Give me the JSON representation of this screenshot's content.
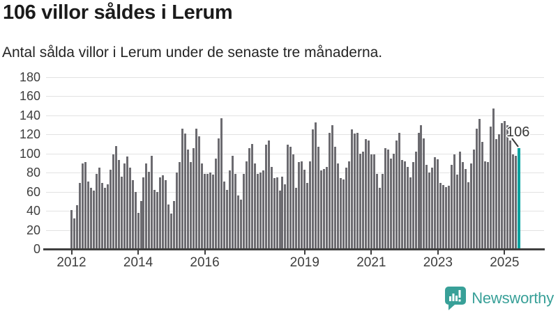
{
  "header": {
    "title": "106 villor såldes i Lerum",
    "subtitle": "Antal sålda villor i Lerum under de senaste tre månaderna."
  },
  "annotation": {
    "label": "106"
  },
  "footer": {
    "brand": "Newsworthy"
  },
  "colors": {
    "bar": "#6c6b70",
    "accent": "#00a3a0",
    "brand_teal": "#38a098",
    "grid": "#e2e2e2",
    "axis": "#3f3f3f"
  },
  "chart_data": {
    "type": "bar",
    "title": "106 villor såldes i Lerum",
    "subtitle": "Antal sålda villor i Lerum under de senaste tre månaderna.",
    "ylabel": "",
    "xlabel": "",
    "ylim": [
      0,
      180
    ],
    "yticks": [
      0,
      20,
      40,
      60,
      80,
      100,
      120,
      140,
      160,
      180
    ],
    "xticks_years": [
      2012,
      2014,
      2016,
      2019,
      2021,
      2023,
      2025
    ],
    "grid": "horizontal",
    "legend_position": "none",
    "x_start": {
      "year": 2012,
      "month": 1
    },
    "frequency": "monthly",
    "highlight_last": true,
    "highlight_value": 106,
    "values": [
      41,
      32,
      46,
      69,
      90,
      91,
      71,
      64,
      61,
      79,
      85,
      69,
      64,
      68,
      83,
      99,
      108,
      93,
      76,
      90,
      97,
      85,
      72,
      60,
      38,
      50,
      75,
      90,
      81,
      98,
      62,
      60,
      75,
      77,
      72,
      47,
      37,
      50,
      80,
      91,
      126,
      121,
      104,
      91,
      106,
      126,
      118,
      90,
      79,
      79,
      80,
      78,
      95,
      116,
      137,
      71,
      62,
      82,
      98,
      79,
      56,
      52,
      79,
      92,
      106,
      110,
      90,
      79,
      80,
      82,
      109,
      114,
      86,
      74,
      75,
      61,
      76,
      68,
      109,
      107,
      99,
      64,
      91,
      92,
      83,
      69,
      92,
      125,
      133,
      107,
      82,
      84,
      86,
      122,
      130,
      107,
      90,
      74,
      73,
      85,
      92,
      125,
      121,
      122,
      100,
      102,
      115,
      114,
      99,
      99,
      79,
      64,
      79,
      106,
      104,
      95,
      100,
      114,
      122,
      93,
      92,
      86,
      75,
      91,
      102,
      122,
      130,
      116,
      88,
      80,
      85,
      96,
      94,
      69,
      67,
      65,
      66,
      88,
      99,
      78,
      102,
      91,
      84,
      70,
      90,
      104,
      126,
      136,
      112,
      92,
      91,
      128,
      147,
      115,
      120,
      132,
      134,
      130,
      114,
      99,
      98,
      106
    ]
  }
}
